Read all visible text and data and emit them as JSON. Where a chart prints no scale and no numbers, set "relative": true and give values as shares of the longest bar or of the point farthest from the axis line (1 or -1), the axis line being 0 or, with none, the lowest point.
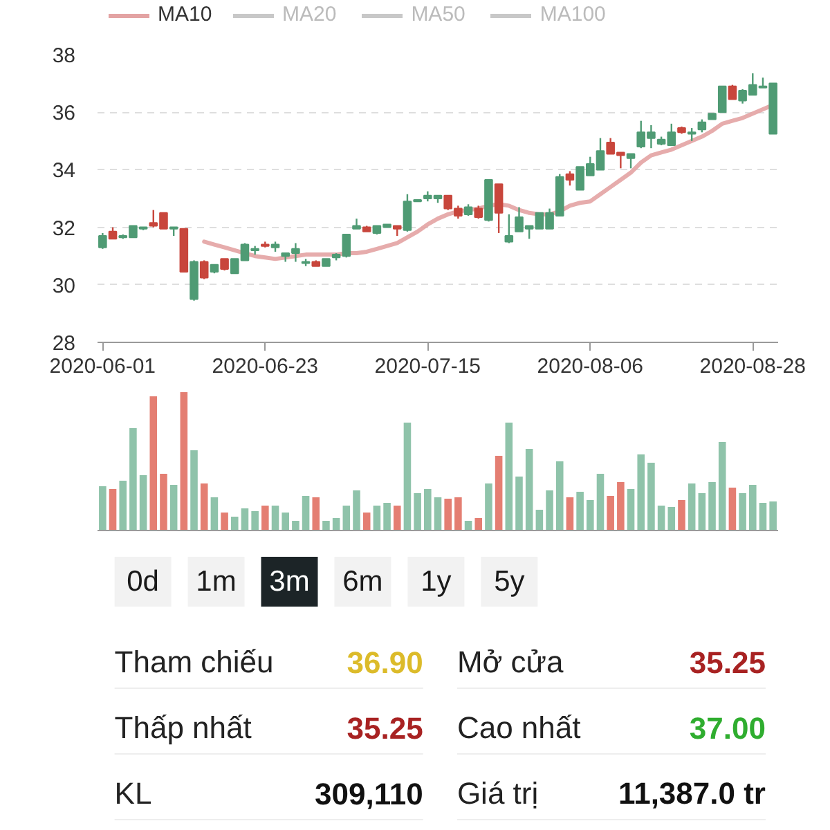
{
  "chart_data": [
    {
      "type": "candlestick",
      "categories": [
        "2020-06-01",
        null,
        null,
        null,
        null,
        null,
        null,
        null,
        null,
        null,
        null,
        null,
        null,
        null,
        null,
        null,
        "2020-06-23",
        null,
        null,
        null,
        null,
        null,
        null,
        null,
        null,
        null,
        null,
        null,
        null,
        null,
        null,
        null,
        "2020-07-15",
        null,
        null,
        null,
        null,
        null,
        null,
        null,
        null,
        null,
        null,
        null,
        null,
        null,
        null,
        null,
        "2020-08-06",
        null,
        null,
        null,
        null,
        null,
        null,
        null,
        null,
        null,
        null,
        null,
        null,
        null,
        null,
        null,
        "2020-08-28",
        null,
        null
      ],
      "ohlc": [
        [
          31.3,
          31.8,
          31.25,
          31.7
        ],
        [
          31.85,
          32.0,
          31.6,
          31.6
        ],
        [
          31.65,
          31.75,
          31.6,
          31.7
        ],
        [
          31.65,
          32.05,
          31.65,
          32.05
        ],
        [
          31.95,
          32.0,
          31.9,
          32.0
        ],
        [
          32.15,
          32.6,
          32.0,
          32.05
        ],
        [
          32.5,
          32.5,
          31.95,
          31.95
        ],
        [
          31.95,
          32.0,
          31.7,
          32.0
        ],
        [
          31.95,
          31.95,
          30.45,
          30.45
        ],
        [
          29.5,
          30.85,
          29.45,
          30.8
        ],
        [
          30.8,
          30.85,
          30.2,
          30.25
        ],
        [
          30.45,
          30.7,
          30.4,
          30.7
        ],
        [
          30.9,
          30.9,
          30.5,
          30.55
        ],
        [
          30.4,
          30.9,
          30.4,
          30.9
        ],
        [
          30.85,
          31.45,
          30.85,
          31.4
        ],
        [
          31.2,
          31.35,
          31.05,
          31.25
        ],
        [
          31.4,
          31.5,
          31.3,
          31.35
        ],
        [
          31.3,
          31.5,
          31.15,
          31.4
        ],
        [
          31.0,
          31.1,
          30.8,
          31.1
        ],
        [
          31.1,
          31.45,
          30.8,
          31.25
        ],
        [
          30.75,
          30.9,
          30.65,
          30.8
        ],
        [
          30.8,
          30.85,
          30.65,
          30.65
        ],
        [
          30.65,
          30.9,
          30.65,
          30.9
        ],
        [
          30.95,
          31.1,
          30.85,
          31.05
        ],
        [
          31.0,
          31.75,
          30.95,
          31.75
        ],
        [
          31.95,
          32.3,
          31.95,
          32.05
        ],
        [
          32.0,
          32.05,
          31.85,
          31.85
        ],
        [
          31.8,
          32.05,
          31.75,
          32.05
        ],
        [
          32.0,
          32.1,
          32.0,
          32.1
        ],
        [
          32.05,
          32.05,
          31.7,
          31.95
        ],
        [
          31.9,
          33.15,
          31.85,
          32.9
        ],
        [
          32.9,
          32.95,
          32.9,
          32.95
        ],
        [
          33.0,
          33.25,
          32.9,
          33.1
        ],
        [
          33.0,
          33.1,
          32.85,
          33.1
        ],
        [
          33.1,
          33.1,
          32.6,
          32.65
        ],
        [
          32.65,
          32.75,
          32.3,
          32.4
        ],
        [
          32.45,
          32.8,
          32.4,
          32.7
        ],
        [
          32.65,
          32.75,
          32.3,
          32.35
        ],
        [
          32.25,
          33.65,
          32.2,
          33.65
        ],
        [
          33.5,
          33.5,
          31.8,
          32.5
        ],
        [
          31.5,
          32.45,
          31.45,
          31.7
        ],
        [
          31.85,
          32.7,
          31.85,
          32.35
        ],
        [
          31.95,
          32.05,
          31.6,
          32.05
        ],
        [
          31.95,
          32.5,
          31.95,
          32.5
        ],
        [
          31.95,
          32.65,
          31.95,
          32.5
        ],
        [
          32.4,
          33.85,
          32.4,
          33.75
        ],
        [
          33.85,
          33.95,
          33.45,
          33.65
        ],
        [
          33.3,
          34.1,
          33.3,
          34.1
        ],
        [
          33.8,
          34.45,
          33.8,
          34.2
        ],
        [
          34.0,
          35.1,
          34.0,
          34.65
        ],
        [
          34.95,
          35.1,
          34.55,
          34.55
        ],
        [
          34.6,
          34.6,
          34.05,
          34.5
        ],
        [
          34.4,
          34.55,
          34.05,
          34.55
        ],
        [
          34.8,
          35.7,
          34.75,
          35.3
        ],
        [
          35.1,
          35.55,
          34.75,
          35.3
        ],
        [
          34.9,
          35.15,
          34.85,
          35.05
        ],
        [
          34.85,
          35.6,
          34.85,
          35.3
        ],
        [
          35.45,
          35.5,
          35.25,
          35.3
        ],
        [
          35.25,
          35.45,
          35.0,
          35.3
        ],
        [
          35.4,
          35.75,
          35.3,
          35.65
        ],
        [
          35.75,
          35.95,
          35.75,
          35.95
        ],
        [
          36.0,
          36.9,
          36.0,
          36.9
        ],
        [
          36.9,
          36.95,
          36.45,
          36.45
        ],
        [
          36.4,
          36.8,
          36.3,
          36.75
        ],
        [
          36.6,
          37.35,
          36.6,
          36.95
        ],
        [
          36.85,
          37.2,
          36.85,
          36.9
        ],
        [
          35.25,
          37.0,
          35.25,
          37.0
        ]
      ],
      "colors": [
        "#4f9b74",
        "#c8463c",
        "#4f9b74",
        "#4f9b74",
        "#4f9b74",
        "#c8463c",
        "#c8463c",
        "#4f9b74",
        "#c8463c",
        "#4f9b74",
        "#c8463c",
        "#4f9b74",
        "#c8463c",
        "#4f9b74",
        "#4f9b74",
        "#4f9b74",
        "#c8463c",
        "#4f9b74",
        "#4f9b74",
        "#4f9b74",
        "#4f9b74",
        "#c8463c",
        "#4f9b74",
        "#4f9b74",
        "#4f9b74",
        "#4f9b74",
        "#c8463c",
        "#4f9b74",
        "#4f9b74",
        "#c8463c",
        "#4f9b74",
        "#4f9b74",
        "#4f9b74",
        "#4f9b74",
        "#c8463c",
        "#c8463c",
        "#4f9b74",
        "#c8463c",
        "#4f9b74",
        "#c8463c",
        "#4f9b74",
        "#4f9b74",
        "#4f9b74",
        "#4f9b74",
        "#4f9b74",
        "#4f9b74",
        "#c8463c",
        "#4f9b74",
        "#4f9b74",
        "#4f9b74",
        "#c8463c",
        "#c8463c",
        "#4f9b74",
        "#4f9b74",
        "#4f9b74",
        "#4f9b74",
        "#4f9b74",
        "#c8463c",
        "#4f9b74",
        "#4f9b74",
        "#4f9b74",
        "#4f9b74",
        "#c8463c",
        "#4f9b74",
        "#4f9b74",
        "#4f9b74",
        "#4f9b74"
      ],
      "series": [
        {
          "name": "MA10",
          "type": "line",
          "color": "#e3a3a3",
          "values": [
            null,
            null,
            null,
            null,
            null,
            null,
            null,
            null,
            null,
            null,
            31.5,
            31.4,
            31.3,
            31.2,
            31.1,
            31.0,
            30.95,
            30.9,
            30.95,
            31.0,
            31.05,
            31.05,
            31.05,
            31.05,
            31.1,
            31.1,
            31.15,
            31.25,
            31.35,
            31.45,
            31.65,
            31.85,
            32.1,
            32.3,
            32.45,
            32.55,
            32.6,
            32.65,
            32.75,
            32.8,
            32.75,
            32.6,
            32.5,
            32.45,
            32.45,
            32.55,
            32.75,
            32.85,
            32.9,
            33.15,
            33.4,
            33.65,
            33.9,
            34.25,
            34.5,
            34.6,
            34.7,
            34.85,
            35.0,
            35.15,
            35.35,
            35.6,
            35.7,
            35.8,
            35.95,
            36.1,
            36.25
          ]
        },
        {
          "name": "MA20",
          "type": "line",
          "color": "#c8c8c8",
          "values": [
            null,
            null,
            null,
            null,
            null,
            null,
            null,
            null,
            null,
            null,
            null,
            null,
            null,
            null,
            null,
            null,
            null,
            null,
            null,
            null,
            null,
            null,
            null,
            null,
            null,
            null,
            null,
            null,
            null,
            null,
            null,
            null,
            null,
            null,
            null,
            null,
            null,
            null,
            null,
            null,
            null,
            null,
            null,
            null,
            null,
            null,
            null,
            null,
            null,
            null,
            null,
            null,
            null,
            null,
            null,
            null,
            null,
            null,
            null,
            null,
            null,
            null,
            null,
            null,
            null,
            null,
            null
          ]
        },
        {
          "name": "MA50",
          "type": "line",
          "color": "#c8c8c8",
          "values": [
            null,
            null,
            null,
            null,
            null,
            null,
            null,
            null,
            null,
            null,
            null,
            null,
            null,
            null,
            null,
            null,
            null,
            null,
            null,
            null,
            null,
            null,
            null,
            null,
            null,
            null,
            null,
            null,
            null,
            null,
            null,
            null,
            null,
            null,
            null,
            null,
            null,
            null,
            null,
            null,
            null,
            null,
            null,
            null,
            null,
            null,
            null,
            null,
            null,
            null,
            null,
            null,
            null,
            null,
            null,
            null,
            null,
            null,
            null,
            null,
            null,
            null,
            null,
            null,
            null,
            null,
            null
          ]
        },
        {
          "name": "MA100",
          "type": "line",
          "color": "#c8c8c8",
          "values": [
            null,
            null,
            null,
            null,
            null,
            null,
            null,
            null,
            null,
            null,
            null,
            null,
            null,
            null,
            null,
            null,
            null,
            null,
            null,
            null,
            null,
            null,
            null,
            null,
            null,
            null,
            null,
            null,
            null,
            null,
            null,
            null,
            null,
            null,
            null,
            null,
            null,
            null,
            null,
            null,
            null,
            null,
            null,
            null,
            null,
            null,
            null,
            null,
            null,
            null,
            null,
            null,
            null,
            null,
            null,
            null,
            null,
            null,
            null,
            null,
            null,
            null,
            null,
            null,
            null,
            null,
            null
          ]
        }
      ],
      "ylim": [
        28,
        38
      ],
      "yticks": [
        28,
        30,
        32,
        34,
        36,
        38
      ],
      "grid": "y",
      "legend": "top"
    },
    {
      "type": "bar",
      "relative": true,
      "categories": [
        null,
        null,
        null,
        null,
        null,
        null,
        null,
        null,
        null,
        null,
        null,
        null,
        null,
        null,
        null,
        null,
        null,
        null,
        null,
        null,
        null,
        null,
        null,
        null,
        null,
        null,
        null,
        null,
        null,
        null,
        null,
        null,
        null,
        null,
        null,
        null,
        null,
        null,
        null,
        null,
        null,
        null,
        null,
        null,
        null,
        null,
        null,
        null,
        null,
        null,
        null,
        null,
        null,
        null,
        null,
        null,
        null,
        null,
        null,
        null,
        null,
        null,
        null,
        null,
        null,
        null,
        null
      ],
      "values": [
        0.32,
        0.3,
        0.36,
        0.74,
        0.4,
        0.97,
        0.41,
        0.33,
        1,
        0.58,
        0.34,
        0.24,
        0.13,
        0.1,
        0.16,
        0.14,
        0.18,
        0.18,
        0.13,
        0.07,
        0.25,
        0.24,
        0.07,
        0.09,
        0.18,
        0.29,
        0.13,
        0.18,
        0.2,
        0.18,
        0.78,
        0.27,
        0.3,
        0.24,
        0.23,
        0.24,
        0.07,
        0.09,
        0.34,
        0.54,
        0.78,
        0.39,
        0.59,
        0.15,
        0.29,
        0.5,
        0.24,
        0.28,
        0.22,
        0.41,
        0.25,
        0.35,
        0.3,
        0.55,
        0.49,
        0.18,
        0.17,
        0.22,
        0.34,
        0.27,
        0.35,
        0.64,
        0.31,
        0.27,
        0.33,
        0.2,
        0.21
      ],
      "colors": [
        "#8fc3aa",
        "#e47e72",
        "#8fc3aa",
        "#8fc3aa",
        "#8fc3aa",
        "#e47e72",
        "#e47e72",
        "#8fc3aa",
        "#e47e72",
        "#8fc3aa",
        "#e47e72",
        "#8fc3aa",
        "#e47e72",
        "#8fc3aa",
        "#8fc3aa",
        "#8fc3aa",
        "#e47e72",
        "#8fc3aa",
        "#8fc3aa",
        "#8fc3aa",
        "#8fc3aa",
        "#e47e72",
        "#8fc3aa",
        "#8fc3aa",
        "#8fc3aa",
        "#8fc3aa",
        "#e47e72",
        "#8fc3aa",
        "#8fc3aa",
        "#e47e72",
        "#8fc3aa",
        "#8fc3aa",
        "#8fc3aa",
        "#8fc3aa",
        "#e47e72",
        "#e47e72",
        "#8fc3aa",
        "#e47e72",
        "#8fc3aa",
        "#e47e72",
        "#8fc3aa",
        "#8fc3aa",
        "#8fc3aa",
        "#8fc3aa",
        "#8fc3aa",
        "#8fc3aa",
        "#e47e72",
        "#8fc3aa",
        "#8fc3aa",
        "#8fc3aa",
        "#e47e72",
        "#e47e72",
        "#8fc3aa",
        "#8fc3aa",
        "#8fc3aa",
        "#8fc3aa",
        "#8fc3aa",
        "#e47e72",
        "#8fc3aa",
        "#8fc3aa",
        "#8fc3aa",
        "#8fc3aa",
        "#e47e72",
        "#8fc3aa",
        "#8fc3aa",
        "#8fc3aa",
        "#8fc3aa"
      ]
    },
    {
      "type": "other",
      "annotations": [
        "0d",
        "1m",
        "3m",
        "6m",
        "1y",
        "5y"
      ],
      "colors": [
        "#f2f2f2",
        "#f2f2f2",
        "#1c2427",
        "#f2f2f2",
        "#f2f2f2",
        "#f2f2f2"
      ]
    },
    {
      "type": "other",
      "annotations": [
        "Tham chiếu",
        "36.90",
        "Mở cửa",
        "35.25",
        "Thấp nhất",
        "35.25",
        "Cao nhất",
        "37.00",
        "KL",
        "309,110",
        "Giá trị",
        "11,387.0 tr"
      ],
      "colors": [
        "#222222",
        "#dcbb2a",
        "#222222",
        "#a82222",
        "#222222",
        "#a82222",
        "#222222",
        "#2fad2f",
        "#222222",
        "#111111",
        "#222222",
        "#111111"
      ]
    }
  ]
}
